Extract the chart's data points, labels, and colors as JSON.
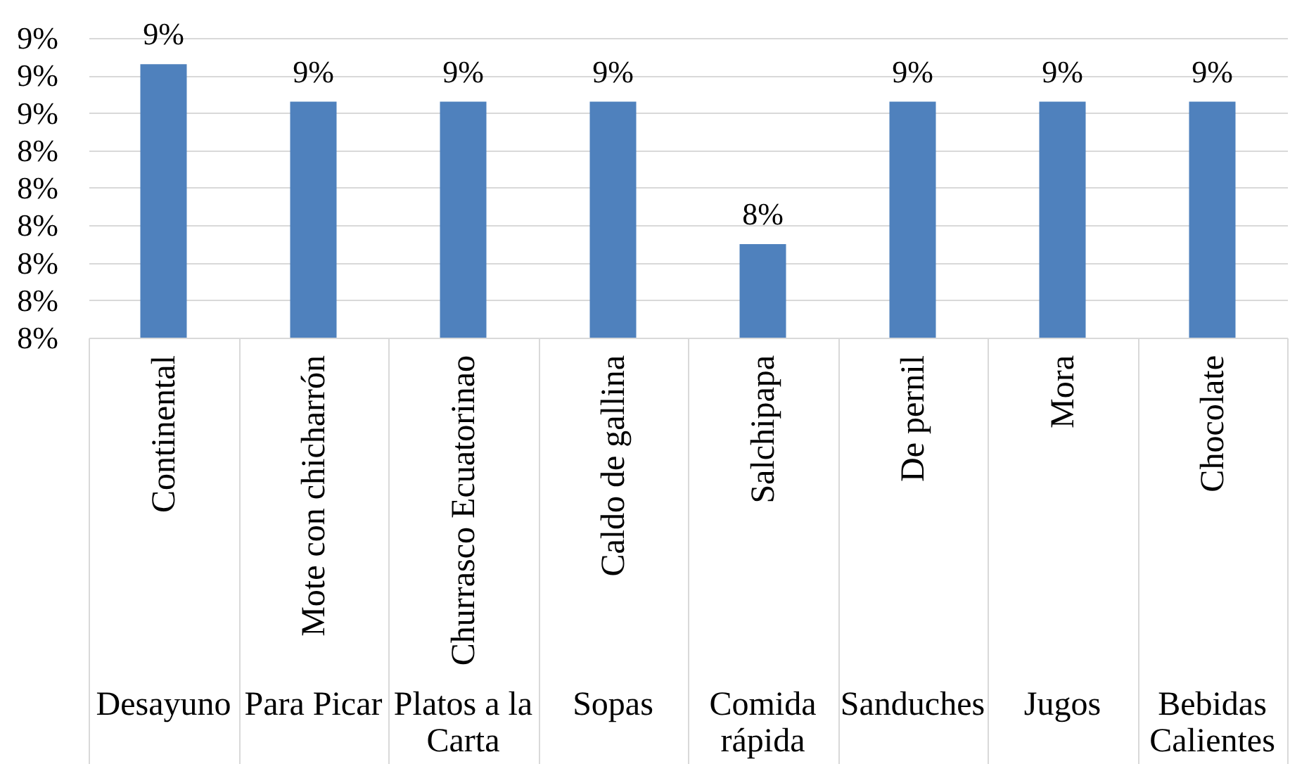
{
  "chart_data": {
    "type": "bar",
    "categories": [
      "Continental",
      "Mote con chicharrón",
      "Churrasco Ecuatorinao",
      "Caldo de gallina",
      "Salchipapa",
      "De pernil",
      "Mora",
      "Chocolate"
    ],
    "values": [
      8.63,
      8.53,
      8.53,
      8.53,
      8.15,
      8.53,
      8.53,
      8.53
    ],
    "value_labels": [
      "9%",
      "9%",
      "9%",
      "9%",
      "8%",
      "9%",
      "9%",
      "9%"
    ],
    "color": "#4f81bd",
    "ylim": [
      7.9,
      8.7
    ],
    "yticks": [
      {
        "value": 7.9,
        "label": "8%"
      },
      {
        "value": 8.0,
        "label": "8%"
      },
      {
        "value": 8.1,
        "label": "8%"
      },
      {
        "value": 8.2,
        "label": "8%"
      },
      {
        "value": 8.3,
        "label": "8%"
      },
      {
        "value": 8.4,
        "label": "8%"
      },
      {
        "value": 8.5,
        "label": "9%"
      },
      {
        "value": 8.6,
        "label": "9%"
      },
      {
        "value": 8.7,
        "label": "9%"
      }
    ],
    "grid": "y",
    "annotations": [
      "Desayuno",
      "Para Picar",
      "Platos a la Carta",
      "Sopas",
      "Comida rápida",
      "Sanduches",
      "Jugos",
      "Bebidas Calientes"
    ]
  }
}
